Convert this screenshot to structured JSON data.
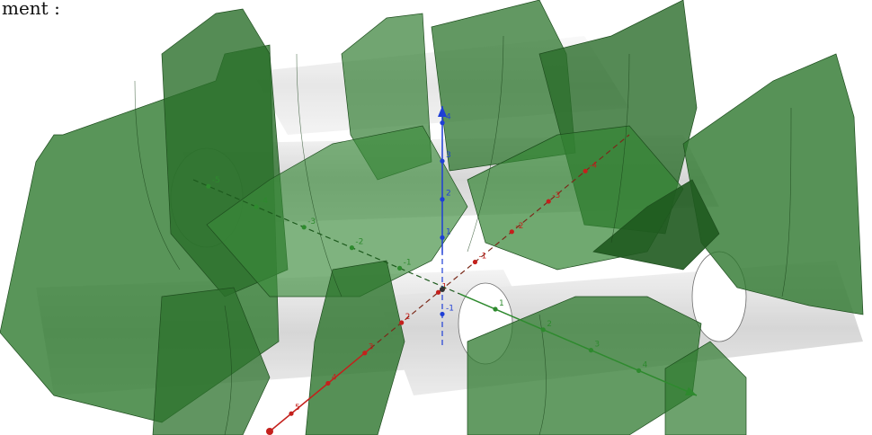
{
  "caption_fragment": "ment :",
  "colors": {
    "surface": "#3a8a3a",
    "surface_edge": "#1e4e1e",
    "cylinder": "#cfcfcf",
    "x_axis": "#c4201c",
    "y_axis": "#2e8a2e",
    "z_axis": "#1f3fd6"
  },
  "axes": {
    "x": {
      "color_name": "red",
      "tick_labels": [
        "5",
        "4",
        "3",
        "2",
        "1",
        "-1",
        "-2",
        "-3",
        "-4"
      ]
    },
    "y": {
      "color_name": "green",
      "tick_labels": [
        "-5",
        "-4",
        "-3",
        "-2",
        "-1",
        "1",
        "2",
        "3",
        "4"
      ]
    },
    "z": {
      "color_name": "blue",
      "tick_labels": [
        "4",
        "3",
        "2",
        "1",
        "-1"
      ]
    }
  }
}
